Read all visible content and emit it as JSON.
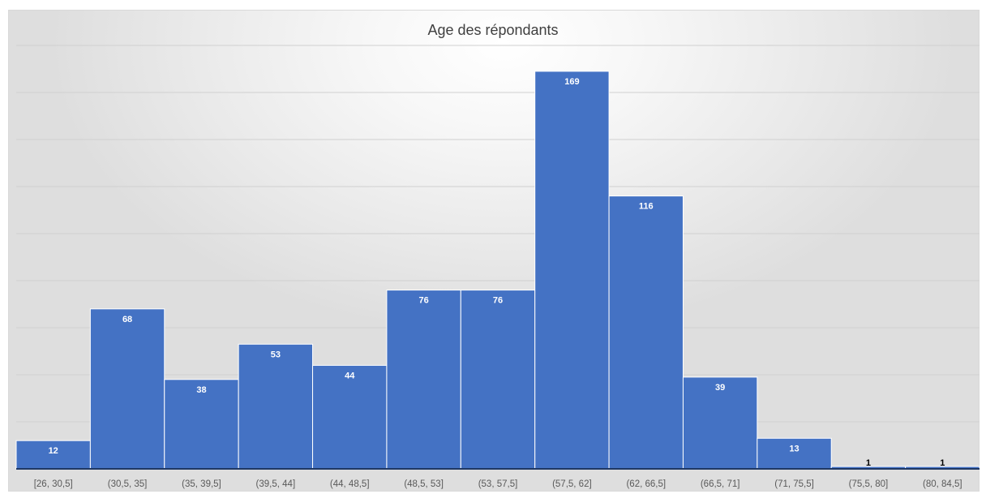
{
  "chart_data": {
    "type": "bar",
    "title": "Age des répondants",
    "xlabel": "",
    "ylabel": "",
    "categories": [
      "[26, 30,5]",
      "(30,5, 35]",
      "(35, 39,5]",
      "(39,5, 44]",
      "(44, 48,5]",
      "(48,5, 53]",
      "(53, 57,5]",
      "(57,5, 62]",
      "(62, 66,5]",
      "(66,5, 71]",
      "(71, 75,5]",
      "(75,5, 80]",
      "(80, 84,5]"
    ],
    "values": [
      12,
      68,
      38,
      53,
      44,
      76,
      76,
      169,
      116,
      39,
      13,
      1,
      1
    ],
    "ylim": [
      0,
      180
    ],
    "grid": true,
    "bar_color": "#4472C4",
    "label_color_inside": "#ffffff",
    "label_color_outside": "#000000"
  }
}
